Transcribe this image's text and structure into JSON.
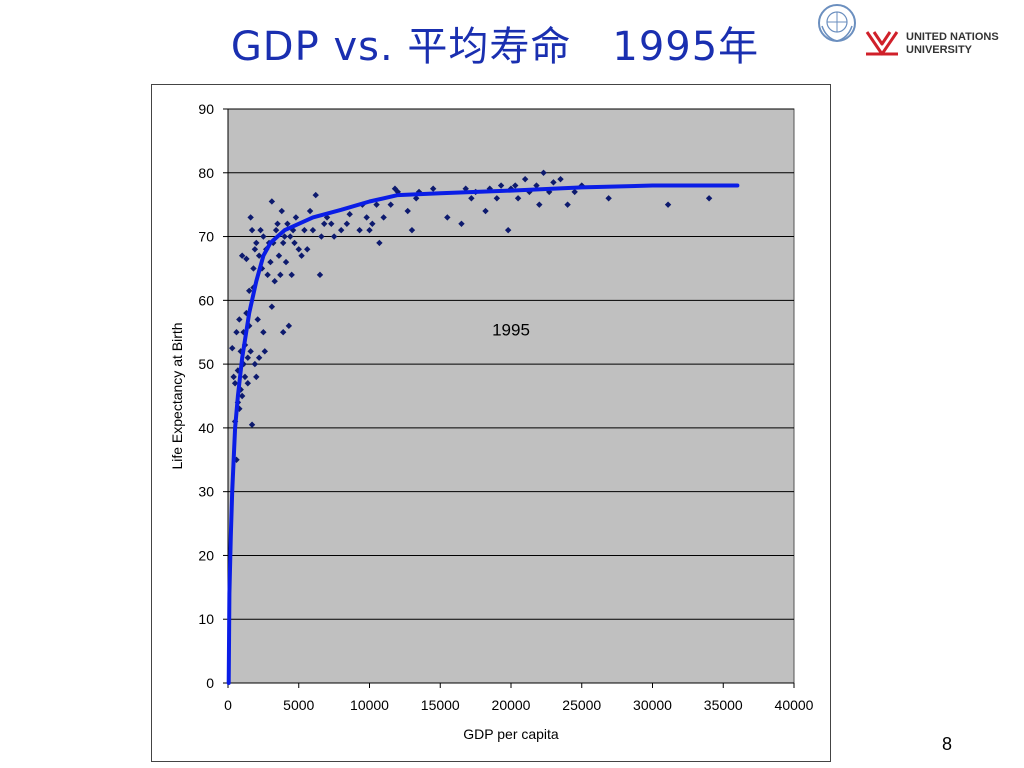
{
  "slide": {
    "title": "GDP vs. 平均寿命　1995年",
    "page_number": "8",
    "logos": {
      "un_emblem": "un-emblem-icon",
      "unu_mark": "unu-mark-icon",
      "unu_line1": "UNITED NATIONS",
      "unu_line2": "UNIVERSITY",
      "unu_color": "#d0202a"
    }
  },
  "colors": {
    "title": "#1a2fb0",
    "plot_background": "#c0c0c0",
    "gridline": "#000000",
    "points": "#0d1a6e",
    "trend_line": "#0a1de6"
  },
  "chart_data": {
    "type": "scatter",
    "title": "",
    "annotation": "1995",
    "xlabel": "GDP per capita",
    "ylabel": "Life Expectancy at Birth",
    "xlim": [
      0,
      40000
    ],
    "ylim": [
      0,
      90
    ],
    "xticks": [
      0,
      5000,
      10000,
      15000,
      20000,
      25000,
      30000,
      35000,
      40000
    ],
    "yticks": [
      0,
      10,
      20,
      30,
      40,
      50,
      60,
      70,
      80,
      90
    ],
    "grid": "horizontal",
    "legend": "none",
    "series": [
      {
        "points": [
          [
            300,
            52.5
          ],
          [
            400,
            48
          ],
          [
            500,
            41
          ],
          [
            500,
            47
          ],
          [
            600,
            35
          ],
          [
            600,
            55
          ],
          [
            700,
            44
          ],
          [
            700,
            49
          ],
          [
            800,
            43
          ],
          [
            800,
            57
          ],
          [
            900,
            46
          ],
          [
            900,
            52
          ],
          [
            1000,
            67
          ],
          [
            1000,
            45
          ],
          [
            1100,
            50
          ],
          [
            1100,
            55
          ],
          [
            1200,
            48
          ],
          [
            1200,
            53
          ],
          [
            1300,
            66.5
          ],
          [
            1300,
            58
          ],
          [
            1400,
            47
          ],
          [
            1400,
            51
          ],
          [
            1500,
            56
          ],
          [
            1500,
            61.5
          ],
          [
            1600,
            73
          ],
          [
            1600,
            52
          ],
          [
            1700,
            40.5
          ],
          [
            1700,
            71
          ],
          [
            1800,
            65
          ],
          [
            1800,
            62
          ],
          [
            1900,
            68
          ],
          [
            1900,
            50
          ],
          [
            2000,
            69
          ],
          [
            2000,
            48
          ],
          [
            2100,
            57
          ],
          [
            2200,
            67
          ],
          [
            2200,
            51
          ],
          [
            2300,
            71
          ],
          [
            2400,
            65
          ],
          [
            2500,
            55
          ],
          [
            2500,
            70
          ],
          [
            2600,
            52
          ],
          [
            2700,
            68
          ],
          [
            2800,
            64
          ],
          [
            2900,
            69
          ],
          [
            3000,
            66
          ],
          [
            3100,
            75.5
          ],
          [
            3100,
            59
          ],
          [
            3200,
            69
          ],
          [
            3300,
            63
          ],
          [
            3400,
            71
          ],
          [
            3500,
            72
          ],
          [
            3600,
            67
          ],
          [
            3700,
            64
          ],
          [
            3800,
            74
          ],
          [
            3900,
            69
          ],
          [
            3900,
            55
          ],
          [
            4000,
            70
          ],
          [
            4100,
            66
          ],
          [
            4200,
            72
          ],
          [
            4300,
            56
          ],
          [
            4400,
            70
          ],
          [
            4500,
            64
          ],
          [
            4600,
            71
          ],
          [
            4700,
            69
          ],
          [
            4800,
            73
          ],
          [
            5000,
            68
          ],
          [
            5200,
            67
          ],
          [
            5400,
            71
          ],
          [
            5600,
            68
          ],
          [
            5800,
            74
          ],
          [
            6000,
            71
          ],
          [
            6200,
            76.5
          ],
          [
            6500,
            64
          ],
          [
            6600,
            70
          ],
          [
            6800,
            72
          ],
          [
            7000,
            73
          ],
          [
            7300,
            72
          ],
          [
            7500,
            70
          ],
          [
            8000,
            71
          ],
          [
            8400,
            72
          ],
          [
            8600,
            73.5
          ],
          [
            9300,
            71
          ],
          [
            9500,
            75
          ],
          [
            9800,
            73
          ],
          [
            10000,
            71
          ],
          [
            10200,
            72
          ],
          [
            10500,
            75
          ],
          [
            10700,
            69
          ],
          [
            11000,
            73
          ],
          [
            11500,
            75
          ],
          [
            11800,
            77.5
          ],
          [
            12000,
            77
          ],
          [
            12700,
            74
          ],
          [
            13000,
            71
          ],
          [
            13300,
            76
          ],
          [
            13500,
            77
          ],
          [
            14500,
            77.5
          ],
          [
            15500,
            73
          ],
          [
            16500,
            72
          ],
          [
            16800,
            77.5
          ],
          [
            17200,
            76
          ],
          [
            17500,
            77
          ],
          [
            18200,
            74
          ],
          [
            18500,
            77.5
          ],
          [
            19000,
            76
          ],
          [
            19300,
            78
          ],
          [
            19800,
            71
          ],
          [
            20000,
            77.5
          ],
          [
            20300,
            78
          ],
          [
            20500,
            76
          ],
          [
            21000,
            79
          ],
          [
            21300,
            77
          ],
          [
            21800,
            78
          ],
          [
            22000,
            75
          ],
          [
            22300,
            80
          ],
          [
            22700,
            77
          ],
          [
            23000,
            78.5
          ],
          [
            23500,
            79
          ],
          [
            24000,
            75
          ],
          [
            24500,
            77
          ],
          [
            25000,
            78
          ],
          [
            26900,
            76
          ],
          [
            31100,
            75
          ],
          [
            34000,
            76
          ]
        ]
      },
      {
        "type": "line",
        "points": [
          [
            50,
            0
          ],
          [
            100,
            14
          ],
          [
            200,
            23
          ],
          [
            300,
            30
          ],
          [
            500,
            40
          ],
          [
            700,
            45
          ],
          [
            1000,
            51
          ],
          [
            1500,
            58
          ],
          [
            2000,
            63
          ],
          [
            2500,
            67
          ],
          [
            3000,
            69
          ],
          [
            4000,
            71
          ],
          [
            5000,
            72
          ],
          [
            6000,
            73
          ],
          [
            8000,
            74.2
          ],
          [
            10000,
            75.5
          ],
          [
            12000,
            76.5
          ],
          [
            15000,
            76.8
          ],
          [
            20000,
            77.2
          ],
          [
            25000,
            77.7
          ],
          [
            30000,
            78
          ],
          [
            36000,
            78
          ]
        ]
      }
    ]
  }
}
